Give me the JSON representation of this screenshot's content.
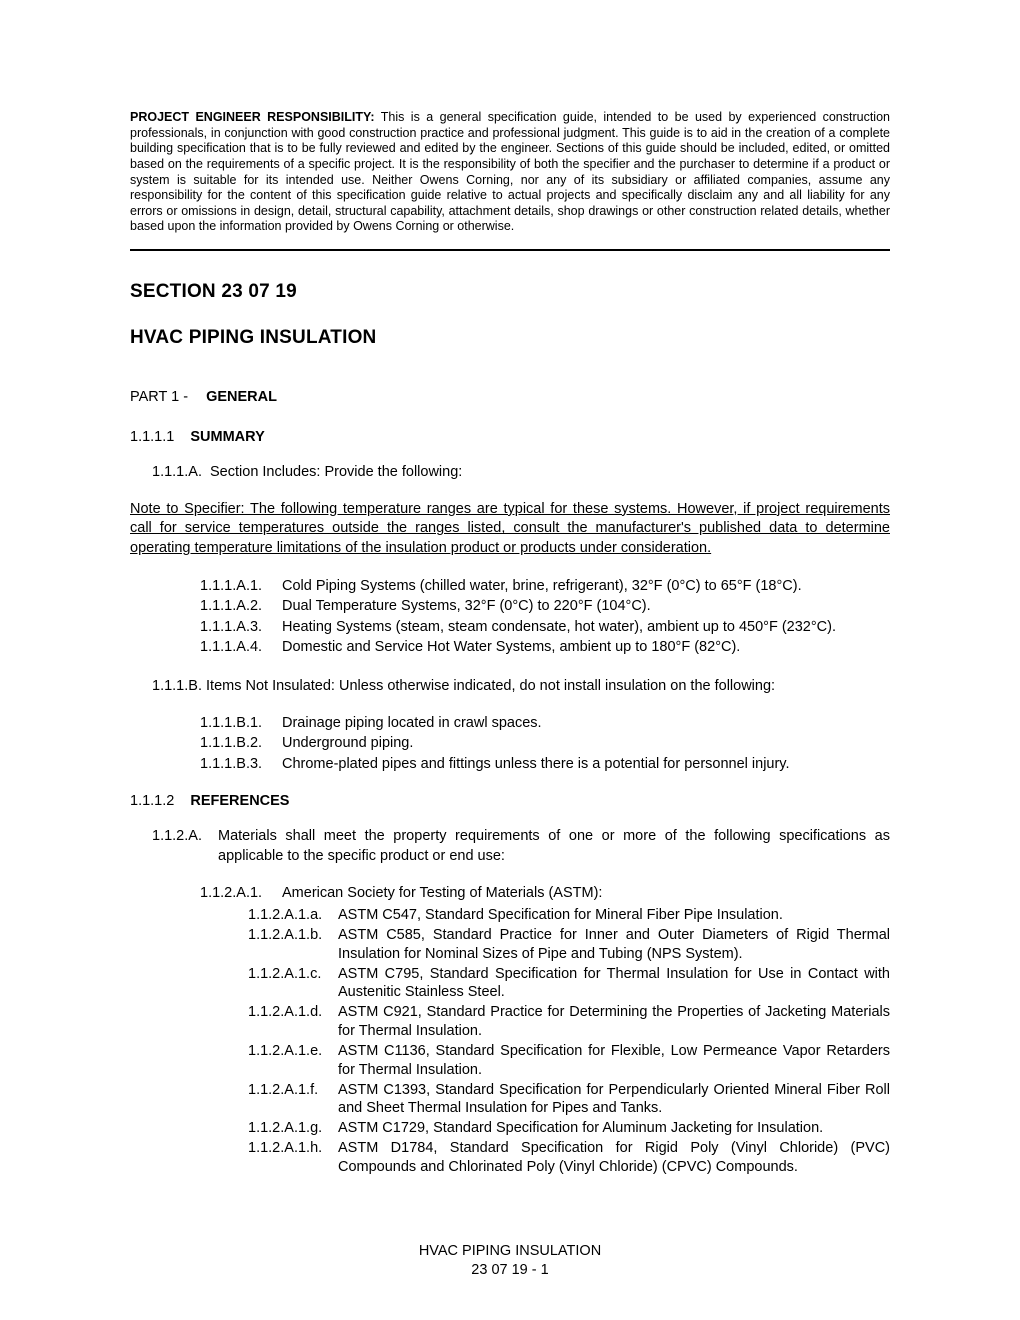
{
  "disclaimer": {
    "lead": "PROJECT ENGINEER RESPONSIBILITY:",
    "body": "This is a general specification guide, intended to be used by experienced construction professionals, in conjunction with good construction practice and professional judgment.  This guide is to aid in the creation of a complete building specification that is to be fully reviewed and edited by the engineer.  Sections of this guide should be included, edited, or omitted based on the requirements of a specific project.  It is the responsibility of both the specifier and the purchaser to determine if a product or system is suitable for its intended use.  Neither Owens Corning, nor any of its subsidiary or affiliated companies, assume any responsibility for the content of this specification guide relative to actual projects and specifically disclaim any and all liability for any errors or omissions in design, detail, structural capability, attachment details, shop drawings or other construction related details, whether based upon the information provided by Owens Corning or otherwise."
  },
  "section_number": "SECTION 23 07 19",
  "doc_title": "HVAC PIPING INSULATION",
  "part": {
    "label": "PART 1 -",
    "name": "GENERAL"
  },
  "summary": {
    "num": "1.1.1.1",
    "name": "SUMMARY",
    "a": {
      "lbl": "1.1.1.A.",
      "txt": "Section Includes:  Provide the following:"
    },
    "note": "Note to Specifier: The following temperature ranges are typical for these systems. However, if project requirements call for service temperatures outside the ranges listed, consult the manufacturer's published data to determine operating temperature limitations of the insulation product or products under consideration.",
    "a_items": [
      {
        "num": "1.1.1.A.1.",
        "txt": "Cold Piping Systems (chilled water, brine, refrigerant), 32°F (0°C) to 65°F (18°C)."
      },
      {
        "num": "1.1.1.A.2.",
        "txt": "Dual Temperature Systems, 32°F (0°C) to 220°F (104°C)."
      },
      {
        "num": "1.1.1.A.3.",
        "txt": "Heating Systems (steam, steam condensate, hot water), ambient up to 450°F (232°C)."
      },
      {
        "num": "1.1.1.A.4.",
        "txt": "Domestic and Service Hot Water Systems, ambient up to 180°F (82°C)."
      }
    ],
    "b": {
      "lbl": "1.1.1.B.",
      "txt": "Items Not Insulated: Unless otherwise indicated, do not install insulation on the following:"
    },
    "b_items": [
      {
        "num": "1.1.1.B.1.",
        "txt": "Drainage piping located in crawl spaces."
      },
      {
        "num": "1.1.1.B.2.",
        "txt": "Underground piping."
      },
      {
        "num": "1.1.1.B.3.",
        "txt": "Chrome-plated pipes and fittings unless there is a potential for personnel injury."
      }
    ]
  },
  "references": {
    "num": "1.1.1.2",
    "name": "REFERENCES",
    "a": {
      "lbl": "1.1.2.A.",
      "txt": "Materials shall meet the property requirements of one or more of the following specifications as applicable to the specific product or end use:"
    },
    "l1": {
      "num": "1.1.2.A.1.",
      "txt": "American Society for Testing of Materials (ASTM):"
    },
    "l2": [
      {
        "num": "1.1.2.A.1.a.",
        "txt": "ASTM C547, Standard Specification for Mineral Fiber Pipe Insulation."
      },
      {
        "num": "1.1.2.A.1.b.",
        "txt": "ASTM C585, Standard Practice for Inner and Outer Diameters of Rigid Thermal Insulation for Nominal Sizes of Pipe and Tubing (NPS System)."
      },
      {
        "num": "1.1.2.A.1.c.",
        "txt": "ASTM C795, Standard Specification for Thermal Insulation for Use in Contact with Austenitic Stainless Steel."
      },
      {
        "num": "1.1.2.A.1.d.",
        "txt": "ASTM C921, Standard Practice for Determining the Properties of Jacketing Materials for Thermal Insulation."
      },
      {
        "num": "1.1.2.A.1.e.",
        "txt": "ASTM C1136, Standard Specification for Flexible, Low Permeance Vapor Retarders for Thermal Insulation."
      },
      {
        "num": "1.1.2.A.1.f.",
        "txt": "ASTM C1393, Standard Specification for Perpendicularly Oriented Mineral Fiber Roll and Sheet Thermal Insulation for Pipes and Tanks."
      },
      {
        "num": "1.1.2.A.1.g.",
        "txt": "ASTM C1729, Standard Specification for Aluminum Jacketing for Insulation."
      },
      {
        "num": "1.1.2.A.1.h.",
        "txt": "ASTM D1784, Standard Specification for Rigid Poly (Vinyl Chloride) (PVC) Compounds and Chlorinated Poly (Vinyl Chloride) (CPVC) Compounds."
      }
    ]
  },
  "footer": {
    "line1": "HVAC PIPING INSULATION",
    "line2": "23 07 19 - 1"
  }
}
